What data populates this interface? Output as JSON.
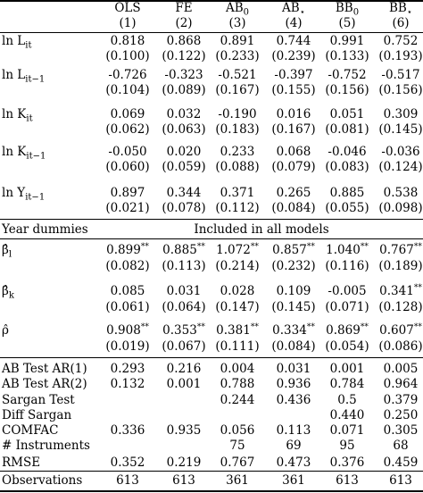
{
  "columns": {
    "headers": [
      "OLS",
      "FE",
      "AB0",
      "AB⋆",
      "BB0",
      "BB⋆"
    ],
    "numbers": [
      "(1)",
      "(2)",
      "(3)",
      "(4)",
      "(5)",
      "(6)"
    ]
  },
  "variables": [
    {
      "label": "ln L_it",
      "coef": [
        "0.818",
        "0.868",
        "0.891",
        "0.744",
        "0.991",
        "0.752"
      ],
      "se": [
        "(0.100)",
        "(0.122)",
        "(0.233)",
        "(0.239)",
        "(0.133)",
        "(0.193)"
      ]
    },
    {
      "label": "ln L_it−1",
      "coef": [
        "-0.726",
        "-0.323",
        "-0.521",
        "-0.397",
        "-0.752",
        "-0.517"
      ],
      "se": [
        "(0.104)",
        "(0.089)",
        "(0.167)",
        "(0.155)",
        "(0.156)",
        "(0.156)"
      ]
    },
    {
      "label": "ln K_it",
      "coef": [
        "0.069",
        "0.032",
        "-0.190",
        "0.016",
        "0.051",
        "0.309"
      ],
      "se": [
        "(0.062)",
        "(0.063)",
        "(0.183)",
        "(0.167)",
        "(0.081)",
        "(0.145)"
      ]
    },
    {
      "label": "ln K_it−1",
      "coef": [
        "-0.050",
        "0.020",
        "0.233",
        "0.068",
        "-0.046",
        "-0.036"
      ],
      "se": [
        "(0.060)",
        "(0.059)",
        "(0.088)",
        "(0.079)",
        "(0.083)",
        "(0.124)"
      ]
    },
    {
      "label": "ln Y_it−1",
      "coef": [
        "0.897",
        "0.344",
        "0.371",
        "0.265",
        "0.885",
        "0.538"
      ],
      "se": [
        "(0.021)",
        "(0.078)",
        "(0.112)",
        "(0.084)",
        "(0.055)",
        "(0.098)"
      ]
    }
  ],
  "year_dummies": {
    "label": "Year dummies",
    "text": "Included in all models"
  },
  "estimates": [
    {
      "label": "β̂_l",
      "coef": [
        "0.899",
        "0.885",
        "1.072",
        "0.857",
        "1.040",
        "0.767"
      ],
      "stars": [
        "**",
        "**",
        "**",
        "**",
        "**",
        "**"
      ],
      "se": [
        "(0.082)",
        "(0.113)",
        "(0.214)",
        "(0.232)",
        "(0.116)",
        "(0.189)"
      ]
    },
    {
      "label": "β̂_k",
      "coef": [
        "0.085",
        "0.031",
        "0.028",
        "0.109",
        "-0.005",
        "0.341"
      ],
      "stars": [
        "",
        "",
        "",
        "",
        "",
        "**"
      ],
      "se": [
        "(0.061)",
        "(0.064)",
        "(0.147)",
        "(0.145)",
        "(0.071)",
        "(0.128)"
      ]
    },
    {
      "label": "ρ̂",
      "coef": [
        "0.908",
        "0.353",
        "0.381",
        "0.334",
        "0.869",
        "0.607"
      ],
      "stars": [
        "**",
        "**",
        "**",
        "**",
        "**",
        "**"
      ],
      "se": [
        "(0.019)",
        "(0.067)",
        "(0.111)",
        "(0.084)",
        "(0.054)",
        "(0.086)"
      ]
    }
  ],
  "tests": [
    {
      "label": "AB Test AR(1)",
      "values": [
        "0.293",
        "0.216",
        "0.004",
        "0.031",
        "0.001",
        "0.005"
      ]
    },
    {
      "label": "AB Test AR(2)",
      "values": [
        "0.132",
        "0.001",
        "0.788",
        "0.936",
        "0.784",
        "0.964"
      ]
    },
    {
      "label": "Sargan Test",
      "values": [
        "",
        "",
        "0.244",
        "0.436",
        "0.5",
        "0.379"
      ]
    },
    {
      "label": "Diff Sargan",
      "values": [
        "",
        "",
        "",
        "",
        "0.440",
        "0.250"
      ]
    },
    {
      "label": "COMFAC",
      "values": [
        "0.336",
        "0.935",
        "0.056",
        "0.113",
        "0.071",
        "0.305"
      ]
    },
    {
      "label": "# Instruments",
      "values": [
        "",
        "",
        "75",
        "69",
        "95",
        "68"
      ]
    },
    {
      "label": "RMSE",
      "values": [
        "0.352",
        "0.219",
        "0.767",
        "0.473",
        "0.376",
        "0.459"
      ]
    },
    {
      "label": "Observations",
      "values": [
        "613",
        "613",
        "361",
        "361",
        "613",
        "613"
      ]
    }
  ]
}
